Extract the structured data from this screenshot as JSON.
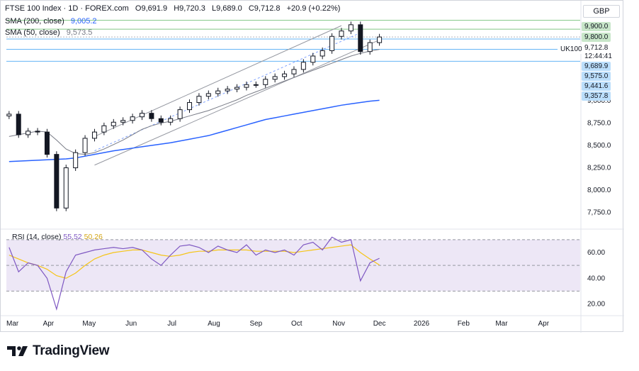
{
  "header": {
    "symbol": "FTSE 100 Index · 1D · FOREX.com",
    "open": "O9,691.9",
    "high": "H9,720.3",
    "low": "L9,689.0",
    "close": "C9,712.8",
    "change": "+20.9 (+0.22%)",
    "sma200_label": "SMA (200, close)",
    "sma200_value": "9,005.2",
    "sma50_label": "SMA (50, close)",
    "sma50_value": "9,573.5",
    "currency": "GBP"
  },
  "rsi_header": {
    "label": "RSI (14, close)",
    "value": "55.52",
    "ma_value": "50.26"
  },
  "price_tags": {
    "level_9900": "9,900.0",
    "level_9800": "9,800.0",
    "symbol_tag": "UK100",
    "last_price": "9,712.8",
    "countdown": "12:44:41",
    "level_9689": "9,689.9",
    "level_9575": "9,575.0",
    "level_9441": "9,441.6",
    "level_9357": "9,357.8"
  },
  "brand": {
    "name": "TradingView"
  },
  "colors": {
    "candle": "#131722",
    "sma200": "#2962ff",
    "sma50": "#787b86",
    "rsi": "#7e57c2",
    "rsi_ma": "#f5c518",
    "rsi_band": "#ede7f6",
    "green_tag": "#c8e6c9",
    "blue_tag": "#bbdefb"
  },
  "chart_data": [
    {
      "type": "candlestick",
      "title": "FTSE 100 Index · 1D · FOREX.com",
      "x_tick_labels": [
        "Mar",
        "Apr",
        "May",
        "Jun",
        "Jul",
        "Aug",
        "Sep",
        "Oct",
        "Nov",
        "Dec",
        "2026",
        "Feb",
        "Mar",
        "Apr"
      ],
      "y_tick_labels": [
        "9,000.0",
        "8,750.0",
        "8,500.0",
        "8,250.0",
        "8,000.0",
        "7,750.0"
      ],
      "ylim": [
        7580,
        9960
      ],
      "last_close": 9712.8,
      "x": [
        "2025-03-03",
        "2025-03-10",
        "2025-03-17",
        "2025-03-24",
        "2025-03-31",
        "2025-04-07",
        "2025-04-14",
        "2025-04-21",
        "2025-04-28",
        "2025-05-05",
        "2025-05-12",
        "2025-05-19",
        "2025-05-26",
        "2025-06-02",
        "2025-06-09",
        "2025-06-16",
        "2025-06-23",
        "2025-06-30",
        "2025-07-07",
        "2025-07-14",
        "2025-07-21",
        "2025-07-28",
        "2025-08-04",
        "2025-08-11",
        "2025-08-18",
        "2025-08-25",
        "2025-09-01",
        "2025-09-08",
        "2025-09-15",
        "2025-09-22",
        "2025-09-29",
        "2025-10-06",
        "2025-10-13",
        "2025-10-20",
        "2025-10-27",
        "2025-11-03",
        "2025-11-10",
        "2025-11-17",
        "2025-11-24",
        "2025-12-01"
      ],
      "series": [
        {
          "name": "FTSE 100 Index",
          "values": [
            8850,
            8620,
            8660,
            8650,
            8400,
            7800,
            8250,
            8420,
            8580,
            8650,
            8720,
            8760,
            8780,
            8820,
            8860,
            8800,
            8760,
            8800,
            8900,
            8980,
            9050,
            9080,
            9110,
            9130,
            9150,
            9180,
            9180,
            9240,
            9270,
            9300,
            9350,
            9430,
            9500,
            9560,
            9720,
            9780,
            9850,
            9550,
            9650,
            9713
          ]
        },
        {
          "name": "SMA (200, close)",
          "values": [
            8320,
            8325,
            8330,
            8335,
            8340,
            8345,
            8350,
            8360,
            8380,
            8400,
            8420,
            8440,
            8455,
            8470,
            8485,
            8500,
            8515,
            8530,
            8550,
            8570,
            8590,
            8610,
            8640,
            8670,
            8700,
            8730,
            8760,
            8790,
            8810,
            8830,
            8850,
            8870,
            8890,
            8910,
            8930,
            8950,
            8965,
            8980,
            8995,
            9005
          ]
        },
        {
          "name": "SMA (50, close)",
          "values": [
            8600,
            8620,
            8640,
            8660,
            8650,
            8560,
            8460,
            8410,
            8400,
            8420,
            8460,
            8510,
            8560,
            8620,
            8680,
            8720,
            8750,
            8770,
            8800,
            8830,
            8860,
            8890,
            8930,
            8970,
            9010,
            9060,
            9100,
            9140,
            9180,
            9220,
            9260,
            9300,
            9340,
            9380,
            9420,
            9460,
            9500,
            9530,
            9555,
            9574
          ]
        }
      ]
    },
    {
      "type": "line",
      "title": "RSI (14, close)",
      "y_tick_labels": [
        "60.00",
        "40.00",
        "20.00"
      ],
      "ylim": [
        12,
        76
      ],
      "bands": [
        30,
        50,
        70
      ],
      "x": [
        "2025-03-03",
        "2025-03-10",
        "2025-03-17",
        "2025-03-24",
        "2025-03-31",
        "2025-04-07",
        "2025-04-14",
        "2025-04-21",
        "2025-04-28",
        "2025-05-05",
        "2025-05-12",
        "2025-05-19",
        "2025-05-26",
        "2025-06-02",
        "2025-06-09",
        "2025-06-16",
        "2025-06-23",
        "2025-06-30",
        "2025-07-07",
        "2025-07-14",
        "2025-07-21",
        "2025-07-28",
        "2025-08-04",
        "2025-08-11",
        "2025-08-18",
        "2025-08-25",
        "2025-09-01",
        "2025-09-08",
        "2025-09-15",
        "2025-09-22",
        "2025-09-29",
        "2025-10-06",
        "2025-10-13",
        "2025-10-20",
        "2025-10-27",
        "2025-11-03",
        "2025-11-10",
        "2025-11-17",
        "2025-11-24",
        "2025-12-01"
      ],
      "series": [
        {
          "name": "RSI",
          "values": [
            64,
            45,
            52,
            50,
            40,
            16,
            45,
            58,
            60,
            62,
            63,
            64,
            63,
            64,
            62,
            55,
            50,
            58,
            65,
            66,
            64,
            60,
            65,
            62,
            60,
            66,
            58,
            62,
            60,
            62,
            58,
            66,
            68,
            62,
            72,
            68,
            70,
            38,
            52,
            55.52
          ]
        },
        {
          "name": "RSI-based MA",
          "values": [
            58,
            55,
            52,
            50,
            47,
            42,
            40,
            44,
            50,
            55,
            58,
            60,
            61,
            62,
            62,
            60,
            58,
            57,
            58,
            60,
            61,
            61,
            62,
            62,
            62,
            62,
            61,
            61,
            61,
            61,
            60,
            61,
            62,
            63,
            64,
            65,
            66,
            60,
            55,
            50.26
          ]
        }
      ]
    }
  ]
}
